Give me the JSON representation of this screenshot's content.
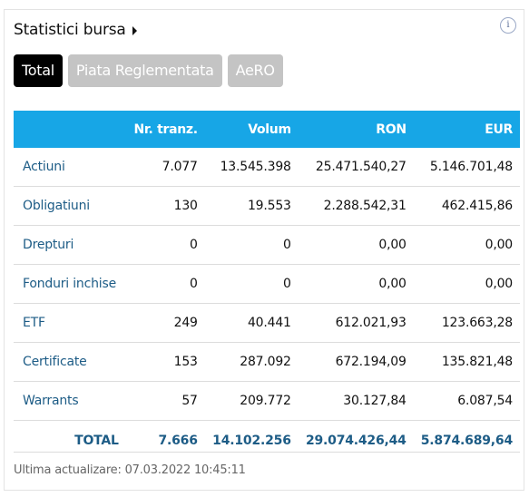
{
  "widget": {
    "title": "Statistici bursa",
    "info_icon": "i",
    "tabs": [
      "Total",
      "Piata Reglementata",
      "AeRO"
    ],
    "active_tab": "Total"
  },
  "table": {
    "columns": [
      "",
      "Nr. tranz.",
      "Volum",
      "RON",
      "EUR"
    ],
    "rows": [
      [
        "Actiuni",
        "7.077",
        "13.545.398",
        "25.471.540,27",
        "5.146.701,48"
      ],
      [
        "Obligatiuni",
        "130",
        "19.553",
        "2.288.542,31",
        "462.415,86"
      ],
      [
        "Drepturi",
        "0",
        "0",
        "0,00",
        "0,00"
      ],
      [
        "Fonduri inchise",
        "0",
        "0",
        "0,00",
        "0,00"
      ],
      [
        "ETF",
        "249",
        "40.441",
        "612.021,93",
        "123.663,28"
      ],
      [
        "Certificate",
        "153",
        "287.092",
        "672.194,09",
        "135.821,48"
      ],
      [
        "Warrants",
        "57",
        "209.772",
        "30.127,84",
        "6.087,54"
      ]
    ],
    "total": [
      "TOTAL",
      "7.666",
      "14.102.256",
      "29.074.426,44",
      "5.874.689,64"
    ]
  },
  "footer": {
    "last_update": "Ultima actualizare: 07.03.2022 10:45:11"
  },
  "colors": {
    "header_bg": "#17a6e6",
    "active_tab_bg": "#000000",
    "inactive_tab_bg": "#c4c4c4",
    "link_text": "#1d5c86"
  }
}
